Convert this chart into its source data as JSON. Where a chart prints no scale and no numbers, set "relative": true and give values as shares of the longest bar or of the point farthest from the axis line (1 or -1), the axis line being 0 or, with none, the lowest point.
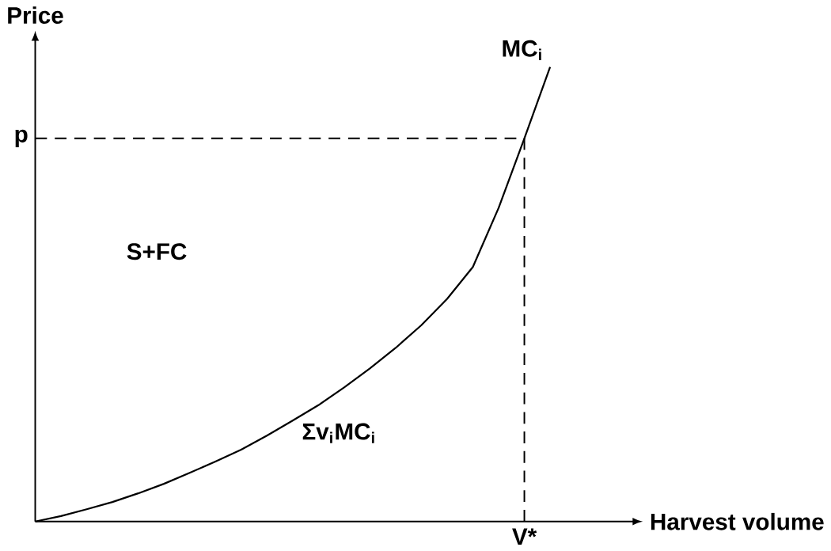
{
  "chart_data": {
    "type": "line",
    "relative": true,
    "xlabel": "Harvest volume",
    "ylabel": "Price",
    "categories": [
      null,
      null,
      null,
      null,
      null,
      null,
      null,
      null,
      null,
      null,
      null,
      null,
      null,
      null,
      null,
      null,
      null,
      null,
      null,
      null,
      null
    ],
    "series": [
      {
        "name": "MC$_{i}$",
        "color": "#000000",
        "values": [
          0,
          0.012,
          0.027,
          0.043,
          0.062,
          0.083,
          0.107,
          0.132,
          0.158,
          0.189,
          0.222,
          0.256,
          0.295,
          0.337,
          0.382,
          0.432,
          0.49,
          0.56,
          0.69,
          0.843,
          1
        ]
      }
    ],
    "ref_lines": [
      {
        "axis": "y",
        "value": 0.843,
        "label": "p",
        "line_style": "dashed",
        "color": "#000000"
      }
    ],
    "annotations": [
      "S+FC",
      "Σv$_{i}$MC$_{i}$",
      "V*"
    ]
  }
}
